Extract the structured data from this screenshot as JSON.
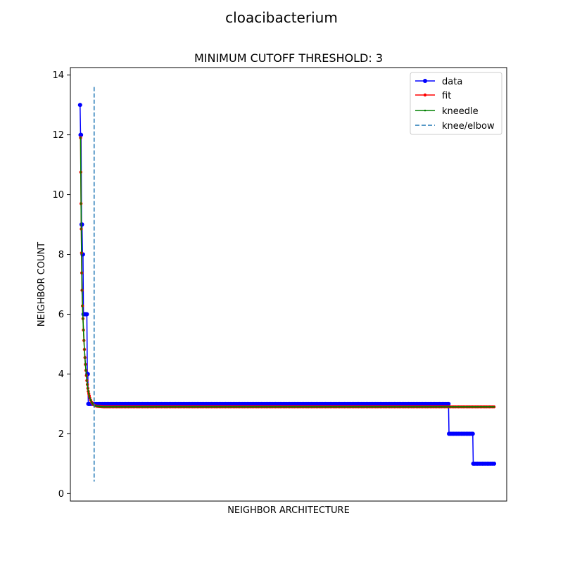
{
  "figure": {
    "suptitle": "cloacibacterium"
  },
  "chart_data": {
    "type": "line",
    "title": "MINIMUM CUTOFF THRESHOLD: 3",
    "xlabel": "NEIGHBOR ARCHITECTURE",
    "ylabel": "NEIGHBOR COUNT",
    "xlim": [
      -20,
      880
    ],
    "ylim": [
      -0.25,
      14.25
    ],
    "yticks": [
      "0",
      "2",
      "4",
      "6",
      "8",
      "10",
      "12",
      "14"
    ],
    "xticks": [],
    "grid": false,
    "legend": {
      "placement": "top-right",
      "entries": [
        "data",
        "fit",
        "kneedle",
        "knee/elbow"
      ]
    },
    "colors": {
      "data": "#0000ff",
      "fit": "#ff0000",
      "kneedle": "#008000",
      "knee_elbow": "#1f77b4"
    },
    "series": [
      {
        "name": "data",
        "style": "blue line with circle markers",
        "x": [
          0,
          1,
          2,
          3,
          4,
          5,
          6,
          7,
          8,
          9,
          10,
          11,
          12,
          13,
          14,
          15,
          16,
          17,
          18,
          20,
          22,
          25,
          28,
          32,
          37,
          43,
          50,
          100,
          200,
          300,
          400,
          500,
          600,
          700,
          760,
          761,
          770,
          780,
          790,
          800,
          810,
          811,
          820,
          830,
          840,
          850,
          854
        ],
        "y": [
          13,
          12,
          12,
          9,
          9,
          8,
          8,
          6,
          6,
          6,
          6,
          6,
          6,
          6,
          6,
          4,
          4,
          3,
          3,
          3,
          3,
          3,
          3,
          3,
          3,
          3,
          3,
          3,
          3,
          3,
          3,
          3,
          3,
          3,
          3,
          2,
          2,
          2,
          2,
          2,
          2,
          1,
          1,
          1,
          1,
          1,
          1
        ]
      },
      {
        "name": "fit",
        "style": "red line with small point markers",
        "x": [
          1,
          1.5,
          2,
          2.5,
          3,
          3.5,
          4,
          5,
          6,
          7,
          8,
          9,
          10,
          11,
          12,
          13,
          14,
          15,
          16,
          17,
          18,
          19,
          20,
          22,
          24,
          26,
          28,
          31,
          35,
          40,
          48,
          60,
          100,
          200,
          300,
          400,
          500,
          600,
          700,
          800,
          854
        ],
        "y": [
          11.9,
          10.75,
          9.7,
          8.85,
          8.05,
          7.38,
          6.8,
          6.28,
          5.85,
          5.47,
          5.12,
          4.82,
          4.55,
          4.32,
          4.12,
          3.95,
          3.78,
          3.65,
          3.52,
          3.42,
          3.34,
          3.27,
          3.2,
          3.12,
          3.05,
          3.0,
          2.97,
          2.94,
          2.92,
          2.91,
          2.9,
          2.9,
          2.9,
          2.9,
          2.9,
          2.9,
          2.9,
          2.9,
          2.9,
          2.9,
          2.9
        ]
      },
      {
        "name": "kneedle",
        "style": "green line with tiny markers",
        "x": [
          1,
          1.5,
          2,
          2.5,
          3,
          3.5,
          4,
          5,
          6,
          7,
          8,
          9,
          10,
          11,
          12,
          13,
          14,
          15,
          16,
          17,
          18,
          19,
          20,
          22,
          24,
          26,
          28,
          31,
          35,
          40,
          48,
          60,
          100,
          200,
          300,
          400,
          500,
          600,
          700,
          800,
          854
        ],
        "y": [
          11.9,
          10.75,
          9.7,
          8.85,
          8.05,
          7.38,
          6.8,
          6.28,
          5.85,
          5.47,
          5.12,
          4.82,
          4.55,
          4.32,
          4.12,
          3.95,
          3.78,
          3.65,
          3.52,
          3.42,
          3.34,
          3.27,
          3.2,
          3.12,
          3.05,
          3.0,
          2.97,
          2.94,
          2.92,
          2.91,
          2.9,
          2.9,
          2.9,
          2.9,
          2.9,
          2.9,
          2.9,
          2.9,
          2.9,
          2.9,
          2.9
        ]
      }
    ],
    "knee": {
      "name": "knee/elbow",
      "style": "dashed vertical line",
      "x": 29,
      "y_range": [
        0.4,
        13.6
      ]
    }
  }
}
